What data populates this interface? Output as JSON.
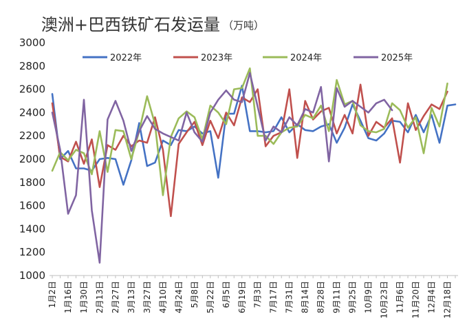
{
  "chart_data": {
    "type": "line",
    "title": "澳洲+巴西铁矿石发运量",
    "unit": "（万吨）",
    "xlabel": "",
    "ylabel": "",
    "ylim": [
      1000,
      3000
    ],
    "yticks": [
      1000,
      1200,
      1400,
      1600,
      1800,
      2000,
      2200,
      2400,
      2600,
      2800,
      3000
    ],
    "grid": false,
    "legend_position": "top",
    "x_tick_labels": [
      "1月2日",
      "1月16日",
      "1月30日",
      "2月13日",
      "2月27日",
      "3月13日",
      "3月27日",
      "4月10日",
      "4月24日",
      "5月8日",
      "5月22日",
      "6月5日",
      "6月19日",
      "7月3日",
      "7月17日",
      "7月31日",
      "8月14日",
      "8月28日",
      "9月11日",
      "9月25日",
      "10月9日",
      "10月23日",
      "11月6日",
      "11月20日",
      "12月4日",
      "12月18日"
    ],
    "series": [
      {
        "name": "2022年",
        "color": "#4472C4",
        "values": [
          2560,
          2000,
          2070,
          1920,
          1920,
          1900,
          2000,
          2010,
          2000,
          1780,
          1990,
          2310,
          1940,
          1970,
          2160,
          2120,
          2250,
          2240,
          2280,
          2220,
          2240,
          1840,
          2390,
          2390,
          2630,
          2240,
          2240,
          2230,
          2240,
          2360,
          2230,
          2300,
          2250,
          2240,
          2280,
          2300,
          2140,
          2270,
          2470,
          2330,
          2180,
          2160,
          2220,
          2330,
          2320,
          2230,
          2380,
          2230,
          2380,
          2140,
          2460,
          2470
        ]
      },
      {
        "name": "2023年",
        "color": "#C0504D",
        "values": [
          2480,
          2020,
          1980,
          2150,
          1960,
          2170,
          1760,
          2120,
          2080,
          2200,
          2110,
          2160,
          2140,
          2360,
          2080,
          1510,
          2130,
          2230,
          2320,
          2120,
          2330,
          2180,
          2400,
          2290,
          2530,
          2490,
          2600,
          2110,
          2200,
          2230,
          2600,
          2010,
          2500,
          2340,
          2410,
          2440,
          2220,
          2380,
          2220,
          2640,
          2200,
          2320,
          2270,
          2350,
          1970,
          2480,
          2250,
          2370,
          2470,
          2430,
          2580
        ]
      },
      {
        "name": "2024年",
        "color": "#9BBB59",
        "values": [
          1900,
          2060,
          1990,
          2080,
          2050,
          1870,
          2240,
          1890,
          2250,
          2240,
          2000,
          2240,
          2540,
          2300,
          1690,
          2190,
          2350,
          2410,
          2360,
          2170,
          2460,
          2400,
          2300,
          2600,
          2610,
          2780,
          2200,
          2200,
          2130,
          2230,
          2270,
          2280,
          2380,
          2350,
          2460,
          2240,
          2680,
          2470,
          2500,
          2290,
          2240,
          2230,
          2260,
          2480,
          2420,
          2270,
          2360,
          2050,
          2440,
          2280,
          2650
        ]
      },
      {
        "name": "2025年",
        "color": "#8064A2",
        "values": [
          2400,
          2080,
          1530,
          1690,
          2510,
          1560,
          1110,
          2340,
          2500,
          2330,
          2070,
          2240,
          2370,
          2260,
          2220,
          2190,
          2160,
          2400,
          2230,
          2150,
          2400,
          2510,
          2590,
          2510,
          2490,
          2740,
          2450,
          2160,
          2280,
          2230,
          2360,
          2290,
          2430,
          2400,
          2620,
          1980,
          2610,
          2450,
          2500,
          2450,
          2400,
          2480,
          2510,
          2420
        ]
      }
    ]
  }
}
